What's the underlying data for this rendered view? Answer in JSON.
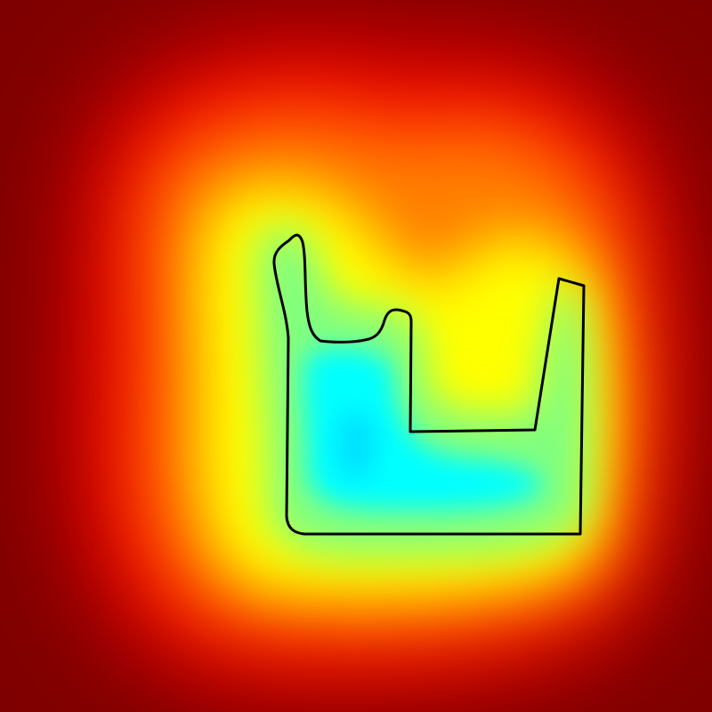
{
  "visualization": {
    "kind": "distance-field-heatmap",
    "colormap": "jet",
    "palette": {
      "outer": "#7f0000",
      "red": "#ff0000",
      "orange": "#ff8000",
      "yellow": "#ffff00",
      "lime": "#80ff80",
      "cyan": "#00ffff",
      "outline": "#000000"
    },
    "shape_label": "polygon-outline"
  }
}
